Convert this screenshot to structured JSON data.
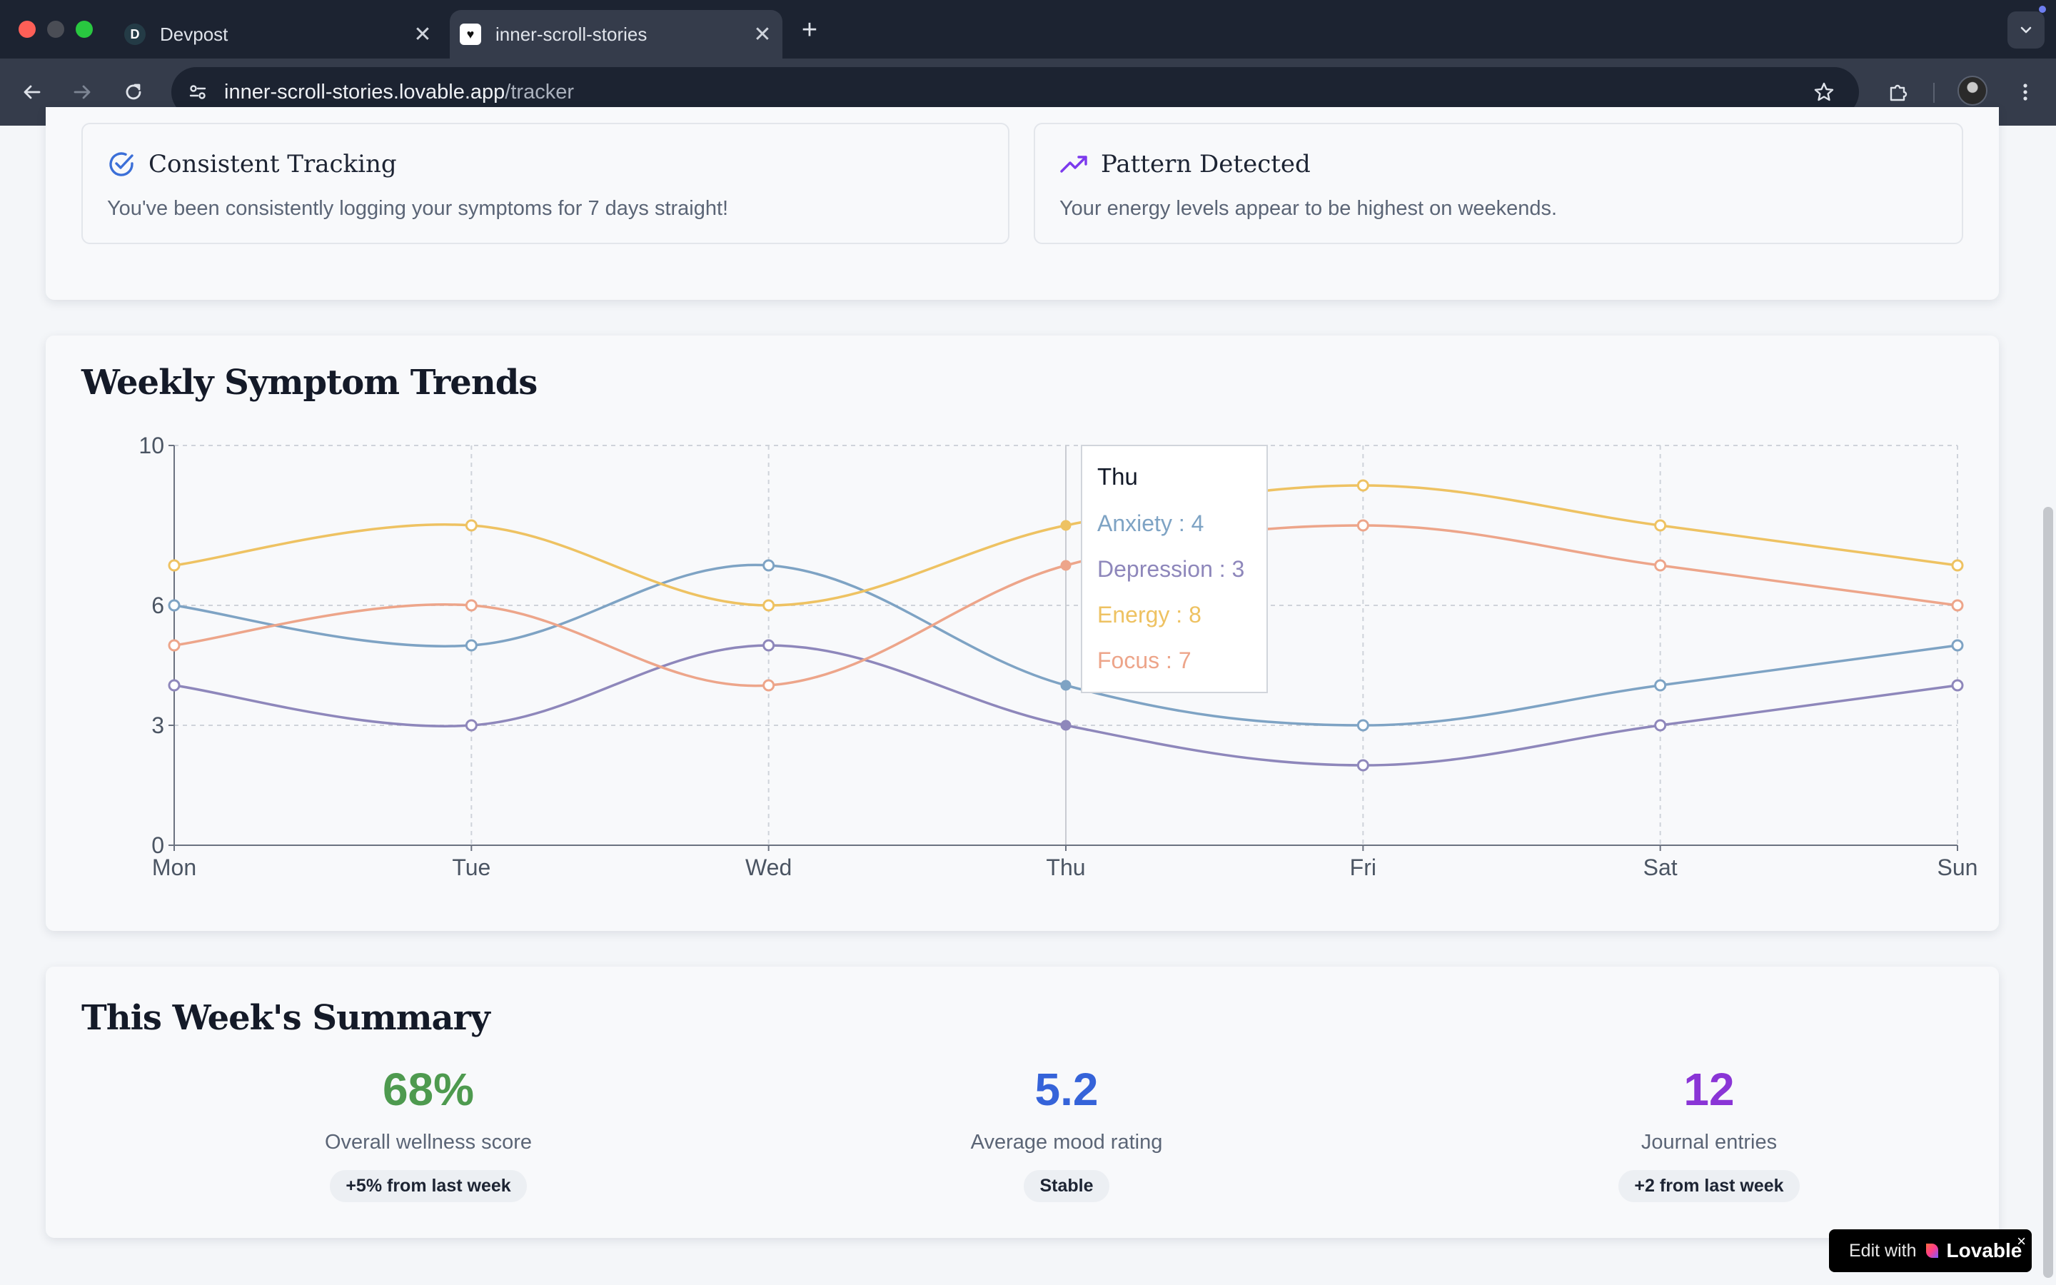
{
  "browser": {
    "tabs": [
      {
        "favicon": "D",
        "title": "Devpost",
        "active": false
      },
      {
        "favicon": "♥",
        "title": "inner-scroll-stories",
        "active": true
      }
    ],
    "new_tab": "+",
    "url_host": "inner-scroll-stories.lovable.app",
    "url_path": "/tracker",
    "icons": {
      "close": "close-icon",
      "back": "arrow-left-icon",
      "forward": "arrow-right-icon",
      "reload": "reload-icon",
      "site_info": "tune-icon",
      "bookmark": "star-icon",
      "extensions": "puzzle-icon",
      "menu": "more-vertical-icon",
      "tab_search": "chevron-down-icon"
    }
  },
  "insights": [
    {
      "title": "Consistent Tracking",
      "text": "You've been consistently logging your symptoms for 7 days straight!",
      "icon": "check-circle-icon",
      "icon_color": "#3b6fd8"
    },
    {
      "title": "Pattern Detected",
      "text": "Your energy levels appear to be highest on weekends.",
      "icon": "trending-up-icon",
      "icon_color": "#7c3aed"
    }
  ],
  "trends": {
    "title": "Weekly Symptom Trends"
  },
  "chart_data": {
    "type": "line",
    "title": "Weekly Symptom Trends",
    "categories": [
      "Mon",
      "Tue",
      "Wed",
      "Thu",
      "Fri",
      "Sat",
      "Sun"
    ],
    "series": [
      {
        "name": "Anxiety",
        "color": "#7ea3c4",
        "values": [
          6,
          5,
          7,
          4,
          3,
          4,
          5
        ]
      },
      {
        "name": "Depression",
        "color": "#8e87bb",
        "values": [
          4,
          3,
          5,
          3,
          2,
          3,
          4
        ]
      },
      {
        "name": "Energy",
        "color": "#eec262",
        "values": [
          7,
          8,
          6,
          8,
          9,
          8,
          7
        ]
      },
      {
        "name": "Focus",
        "color": "#eda58a",
        "values": [
          5,
          6,
          4,
          7,
          8,
          7,
          6
        ]
      }
    ],
    "yticks": [
      0,
      3,
      6,
      10
    ],
    "ylim": [
      0,
      10
    ],
    "grid": true,
    "tooltip": {
      "category": "Thu",
      "items": [
        {
          "label": "Anxiety : 4",
          "color": "#7ea3c4"
        },
        {
          "label": "Depression : 3",
          "color": "#8e87bb"
        },
        {
          "label": "Energy : 8",
          "color": "#eec262"
        },
        {
          "label": "Focus : 7",
          "color": "#eda58a"
        }
      ]
    }
  },
  "summary": {
    "title": "This Week's Summary",
    "stats": [
      {
        "value": "68%",
        "label": "Overall wellness score",
        "badge": "+5% from last week",
        "color": "#4e9a4f"
      },
      {
        "value": "5.2",
        "label": "Average mood rating",
        "badge": "Stable",
        "color": "#3563d9"
      },
      {
        "value": "12",
        "label": "Journal entries",
        "badge": "+2 from last week",
        "color": "#8a35d6"
      }
    ]
  },
  "lovable": {
    "edit_label": "Edit with",
    "brand": "Lovable",
    "close": "×"
  }
}
